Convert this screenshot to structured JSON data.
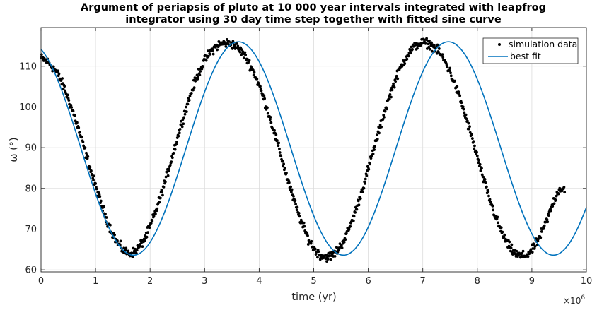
{
  "chart_data": {
    "type": "scatter",
    "title": "Argument of periapsis of pluto at 10 000 year intervals integrated with leapfrog",
    "subtitle": "integrator using 30 day time step together with fitted sine curve",
    "xlabel": "time (yr)",
    "ylabel": "ω (°)",
    "x_exponent_base": "×10",
    "x_exponent_power": "6",
    "xlim": [
      0,
      10000000
    ],
    "ylim": [
      59.5,
      119.5
    ],
    "x_ticks": [
      0,
      1000000,
      2000000,
      3000000,
      4000000,
      5000000,
      6000000,
      7000000,
      8000000,
      9000000,
      10000000
    ],
    "x_tick_labels": [
      "0",
      "1",
      "2",
      "3",
      "4",
      "5",
      "6",
      "7",
      "8",
      "9",
      "10"
    ],
    "y_ticks": [
      60,
      70,
      80,
      90,
      100,
      110
    ],
    "y_tick_labels": [
      "60",
      "70",
      "80",
      "90",
      "100",
      "110"
    ],
    "grid": true,
    "legend_position": "top-right",
    "sample_interval_yr": 10000,
    "series": [
      {
        "name": "simulation data",
        "kind": "scatter",
        "color": "#000000",
        "points_xy": [
          [
            0,
            112.0
          ],
          [
            100000,
            111.3
          ],
          [
            200000,
            110.0
          ],
          [
            300000,
            108.3
          ],
          [
            400000,
            105.5
          ],
          [
            500000,
            102.0
          ],
          [
            600000,
            98.3
          ],
          [
            700000,
            94.0
          ],
          [
            800000,
            89.5
          ],
          [
            900000,
            85.0
          ],
          [
            1000000,
            80.5
          ],
          [
            1100000,
            76.3
          ],
          [
            1200000,
            72.5
          ],
          [
            1300000,
            69.3
          ],
          [
            1400000,
            66.6
          ],
          [
            1500000,
            64.9
          ],
          [
            1600000,
            64.0
          ],
          [
            1700000,
            64.3
          ],
          [
            1800000,
            65.6
          ],
          [
            1900000,
            67.6
          ],
          [
            2000000,
            70.6
          ],
          [
            2100000,
            74.2
          ],
          [
            2200000,
            78.3
          ],
          [
            2300000,
            82.8
          ],
          [
            2400000,
            87.6
          ],
          [
            2500000,
            92.4
          ],
          [
            2600000,
            97.0
          ],
          [
            2700000,
            101.4
          ],
          [
            2800000,
            105.3
          ],
          [
            2900000,
            108.7
          ],
          [
            3000000,
            111.4
          ],
          [
            3100000,
            113.4
          ],
          [
            3200000,
            114.8
          ],
          [
            3300000,
            115.5
          ],
          [
            3400000,
            115.7
          ],
          [
            3500000,
            115.4
          ],
          [
            3600000,
            114.6
          ],
          [
            3700000,
            113.2
          ],
          [
            3800000,
            111.2
          ],
          [
            3900000,
            108.5
          ],
          [
            4000000,
            105.3
          ],
          [
            4100000,
            101.5
          ],
          [
            4200000,
            97.3
          ],
          [
            4300000,
            92.7
          ],
          [
            4400000,
            88.0
          ],
          [
            4500000,
            83.2
          ],
          [
            4600000,
            78.7
          ],
          [
            4700000,
            74.5
          ],
          [
            4800000,
            70.8
          ],
          [
            4900000,
            67.7
          ],
          [
            5000000,
            65.3
          ],
          [
            5100000,
            63.8
          ],
          [
            5200000,
            63.2
          ],
          [
            5300000,
            63.3
          ],
          [
            5400000,
            64.2
          ],
          [
            5500000,
            66.0
          ],
          [
            5600000,
            68.6
          ],
          [
            5700000,
            71.9
          ],
          [
            5800000,
            75.8
          ],
          [
            5900000,
            80.1
          ],
          [
            6000000,
            84.8
          ],
          [
            6100000,
            89.6
          ],
          [
            6200000,
            94.3
          ],
          [
            6300000,
            98.8
          ],
          [
            6400000,
            103.0
          ],
          [
            6500000,
            106.7
          ],
          [
            6600000,
            109.9
          ],
          [
            6700000,
            112.4
          ],
          [
            6800000,
            114.2
          ],
          [
            6900000,
            115.3
          ],
          [
            7000000,
            115.8
          ],
          [
            7100000,
            115.6
          ],
          [
            7200000,
            114.8
          ],
          [
            7300000,
            113.4
          ],
          [
            7400000,
            111.3
          ],
          [
            7500000,
            108.6
          ],
          [
            7600000,
            105.2
          ],
          [
            7700000,
            101.3
          ],
          [
            7800000,
            97.0
          ],
          [
            7900000,
            92.4
          ],
          [
            8000000,
            87.7
          ],
          [
            8100000,
            82.9
          ],
          [
            8200000,
            78.4
          ],
          [
            8300000,
            74.3
          ],
          [
            8400000,
            70.7
          ],
          [
            8500000,
            67.7
          ],
          [
            8600000,
            65.4
          ],
          [
            8700000,
            63.9
          ],
          [
            8800000,
            63.3
          ],
          [
            8900000,
            63.6
          ],
          [
            9000000,
            64.8
          ],
          [
            9100000,
            66.9
          ],
          [
            9200000,
            69.7
          ],
          [
            9300000,
            73.0
          ],
          [
            9400000,
            76.8
          ],
          [
            9500000,
            79.8
          ],
          [
            9600000,
            80.0
          ]
        ]
      },
      {
        "name": "best fit",
        "kind": "line",
        "color": "#0072BD",
        "model": "y = offset + amplitude * cos(2*pi*(x - peak_x)/period)",
        "offset": 89.8,
        "amplitude": 26.2,
        "period": 3850000,
        "peak_x": 3620000,
        "start_x": 0,
        "end_x": 10000000
      }
    ]
  }
}
